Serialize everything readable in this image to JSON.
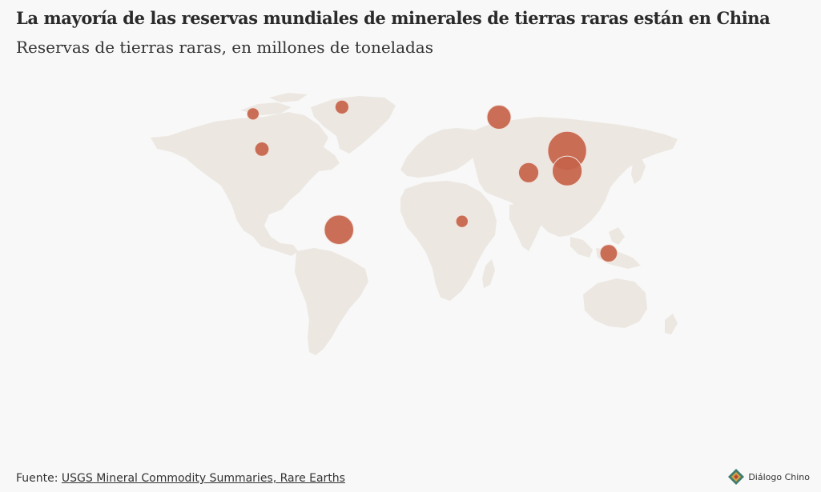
{
  "title": "La mayoría de las reservas mundiales de minerales de tierras raras están en China",
  "subtitle": "Reservas de tierras raras, en millones de toneladas",
  "footer": {
    "source_label": "Fuente:",
    "source_link_text": "USGS Mineral Commodity Summaries, Rare Earths"
  },
  "logo": {
    "text": "Diálogo Chino",
    "icon": "dialogo-chino-diamond-icon"
  },
  "colors": {
    "marker": "#c6634a",
    "land": "#ece7e1",
    "background": "#f8f8f8"
  },
  "markers": [
    {
      "id": "canada",
      "lat": 57.0,
      "lon": -106.0,
      "value": 0.83
    },
    {
      "id": "united-states",
      "lat": 36.0,
      "lon": -100.0,
      "value": 1.8
    },
    {
      "id": "greenland",
      "lat": 61.0,
      "lon": -46.0,
      "value": 1.5
    },
    {
      "id": "brazil",
      "lat": -12.0,
      "lon": -48.0,
      "value": 21
    },
    {
      "id": "russia",
      "lat": 55.0,
      "lon": 60.0,
      "value": 12
    },
    {
      "id": "india",
      "lat": 22.0,
      "lon": 80.0,
      "value": 6.9
    },
    {
      "id": "china",
      "lat": 35.0,
      "lon": 106.0,
      "value": 44
    },
    {
      "id": "vietnam",
      "lat": 23.0,
      "lon": 106.0,
      "value": 22
    },
    {
      "id": "tanzania",
      "lat": -7.0,
      "lon": 35.0,
      "value": 0.89
    },
    {
      "id": "australia",
      "lat": -26.0,
      "lon": 134.0,
      "value": 4.1
    }
  ]
}
